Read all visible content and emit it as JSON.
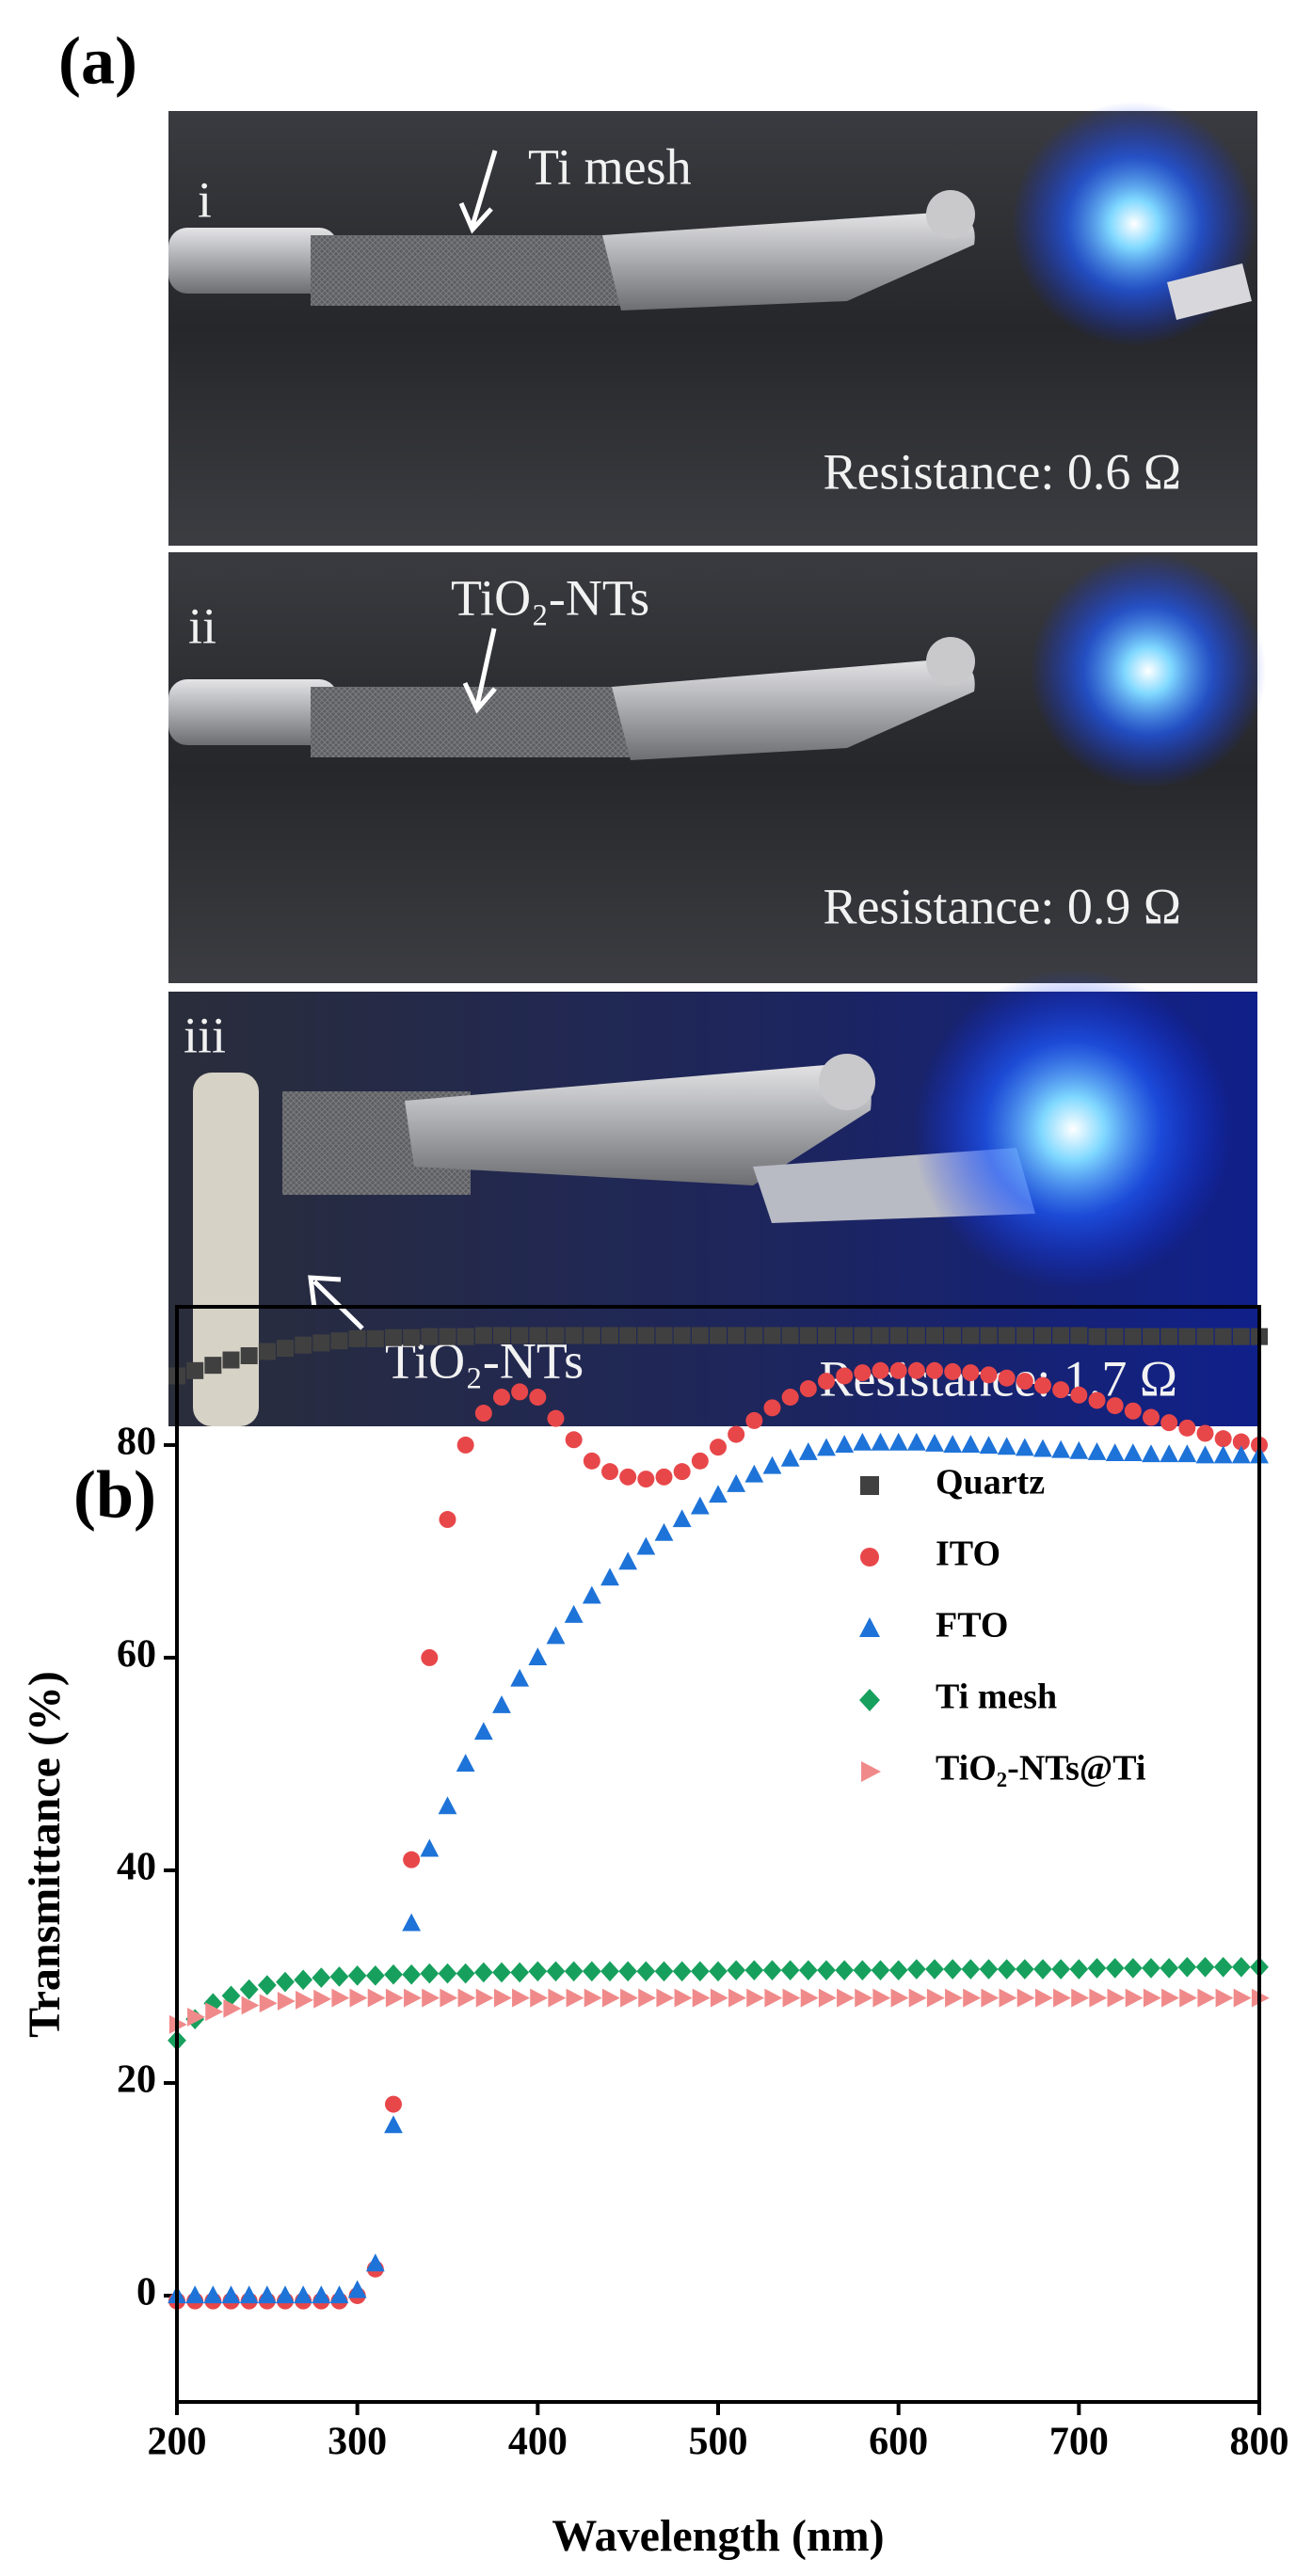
{
  "panel_a": {
    "label": "(a)",
    "photos": [
      {
        "index": "i",
        "annotation": "Ti mesh",
        "resistance": "Resistance: 0.6 Ω"
      },
      {
        "index": "ii",
        "annotation": "TiO₂-NTs",
        "resistance": "Resistance: 0.9 Ω"
      },
      {
        "index": "iii",
        "annotation": "TiO₂-NTs",
        "resistance": "Resistance: 1.7 Ω"
      }
    ]
  },
  "chart_data": {
    "type": "scatter",
    "panel_label": "(b)",
    "x_label": "Wavelength (nm)",
    "y_label": "Transmittance (%)",
    "xlim": [
      200,
      800
    ],
    "xticks": [
      200,
      300,
      400,
      500,
      600,
      700,
      800
    ],
    "ylim": [
      -10,
      93
    ],
    "yticks": [
      0,
      20,
      40,
      60,
      80
    ],
    "legend": "right",
    "x": [
      200,
      210,
      220,
      230,
      240,
      250,
      260,
      270,
      280,
      290,
      300,
      310,
      320,
      330,
      340,
      350,
      360,
      370,
      380,
      390,
      400,
      410,
      420,
      430,
      440,
      450,
      460,
      470,
      480,
      490,
      500,
      510,
      520,
      530,
      540,
      550,
      560,
      570,
      580,
      590,
      600,
      610,
      620,
      630,
      640,
      650,
      660,
      670,
      680,
      690,
      700,
      710,
      720,
      730,
      740,
      750,
      760,
      770,
      780,
      790,
      800
    ],
    "series": [
      {
        "name": "Quartz",
        "color": "#404040",
        "marker": "square",
        "values": [
          86.5,
          87,
          87.5,
          88,
          88.4,
          88.8,
          89.1,
          89.4,
          89.6,
          89.8,
          90,
          90,
          90.1,
          90.1,
          90.2,
          90.2,
          90.2,
          90.3,
          90.3,
          90.3,
          90.3,
          90.3,
          90.3,
          90.3,
          90.3,
          90.3,
          90.3,
          90.3,
          90.3,
          90.3,
          90.3,
          90.3,
          90.3,
          90.3,
          90.3,
          90.3,
          90.3,
          90.3,
          90.3,
          90.3,
          90.3,
          90.3,
          90.3,
          90.3,
          90.3,
          90.3,
          90.3,
          90.3,
          90.3,
          90.3,
          90.3,
          90.2,
          90.2,
          90.2,
          90.2,
          90.2,
          90.2,
          90.2,
          90.2,
          90.2,
          90.2
        ]
      },
      {
        "name": "ITO",
        "color": "#e8474a",
        "marker": "circle",
        "values": [
          -0.5,
          -0.5,
          -0.5,
          -0.5,
          -0.5,
          -0.5,
          -0.5,
          -0.5,
          -0.5,
          -0.5,
          0,
          2.5,
          18,
          41,
          60,
          73,
          80,
          83,
          84.5,
          85,
          84.5,
          82.5,
          80.5,
          78.5,
          77.5,
          77,
          76.8,
          77,
          77.5,
          78.5,
          79.8,
          81,
          82.3,
          83.5,
          84.5,
          85.3,
          86,
          86.5,
          86.8,
          87,
          87,
          87,
          87,
          86.9,
          86.8,
          86.6,
          86.3,
          86,
          85.6,
          85.2,
          84.7,
          84.2,
          83.7,
          83.2,
          82.6,
          82.1,
          81.6,
          81.1,
          80.6,
          80.3,
          80
        ]
      },
      {
        "name": "FTO",
        "color": "#1e73d8",
        "marker": "triangle",
        "values": [
          0,
          0,
          0,
          0,
          0,
          0,
          0,
          0,
          0,
          0,
          0.5,
          3,
          16,
          35,
          42,
          46,
          50,
          53,
          55.5,
          58,
          60,
          62,
          64,
          65.8,
          67.5,
          69,
          70.4,
          71.7,
          73,
          74.2,
          75.3,
          76.3,
          77.2,
          78,
          78.7,
          79.3,
          79.7,
          80,
          80.2,
          80.2,
          80.2,
          80.2,
          80.1,
          80,
          80,
          79.9,
          79.8,
          79.7,
          79.6,
          79.5,
          79.4,
          79.3,
          79.2,
          79.2,
          79.1,
          79.1,
          79.1,
          79,
          79,
          79,
          79
        ]
      },
      {
        "name": "Ti mesh",
        "color": "#17a05d",
        "marker": "diamond",
        "values": [
          24,
          26,
          27.5,
          28.2,
          28.8,
          29.2,
          29.5,
          29.7,
          29.9,
          30,
          30.1,
          30.1,
          30.2,
          30.2,
          30.3,
          30.3,
          30.3,
          30.4,
          30.4,
          30.4,
          30.5,
          30.5,
          30.5,
          30.5,
          30.5,
          30.5,
          30.5,
          30.5,
          30.5,
          30.5,
          30.5,
          30.6,
          30.6,
          30.6,
          30.6,
          30.6,
          30.6,
          30.6,
          30.6,
          30.6,
          30.6,
          30.7,
          30.7,
          30.7,
          30.7,
          30.7,
          30.7,
          30.7,
          30.7,
          30.7,
          30.7,
          30.8,
          30.8,
          30.8,
          30.8,
          30.8,
          30.9,
          30.9,
          30.9,
          30.9,
          30.9
        ]
      },
      {
        "name": "TiO₂-NTs@Ti",
        "color": "#f08a8a",
        "marker": "right-triangle",
        "values": [
          25.5,
          26.2,
          26.7,
          27,
          27.3,
          27.5,
          27.7,
          27.8,
          27.9,
          28,
          28,
          28,
          28,
          28,
          28,
          28,
          28,
          28,
          28,
          28,
          28,
          28,
          28,
          28,
          28,
          28,
          28,
          28,
          28,
          28,
          28,
          28,
          28,
          28,
          28,
          28,
          28,
          28,
          28,
          28,
          28,
          28,
          28,
          28,
          28,
          28,
          28,
          28,
          28,
          28,
          28,
          28,
          28,
          28,
          28,
          28,
          28,
          28,
          28,
          28,
          28
        ]
      }
    ]
  }
}
